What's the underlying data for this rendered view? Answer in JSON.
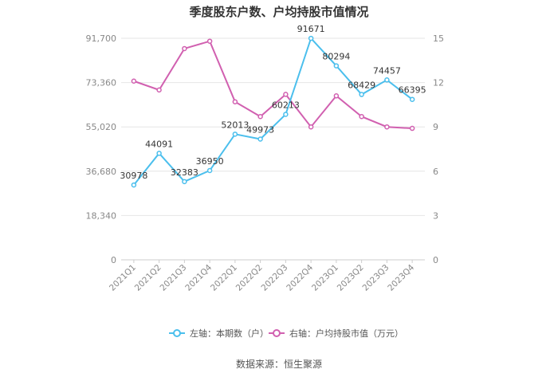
{
  "chart_data": {
    "type": "line",
    "title": "季度股东户数、户均持股市值情况",
    "categories": [
      "2021Q1",
      "2021Q2",
      "2021Q3",
      "2021Q4",
      "2022Q1",
      "2022Q2",
      "2022Q3",
      "2022Q4",
      "2023Q1",
      "2023Q2",
      "2023Q3",
      "2023Q4"
    ],
    "left_axis": {
      "ticks": [
        "0",
        "18,340",
        "36,680",
        "55,020",
        "73,360",
        "91,700"
      ],
      "ylim": [
        0,
        91700
      ]
    },
    "right_axis": {
      "ticks": [
        "0",
        "3",
        "6",
        "9",
        "12",
        "15"
      ],
      "ylim": [
        0,
        15
      ]
    },
    "series": [
      {
        "name": "左轴：本期数（户）",
        "axis": "left",
        "color": "#4bbfed",
        "values": [
          30978,
          44091,
          32383,
          36950,
          52013,
          49973,
          60213,
          91671,
          80294,
          68429,
          74457,
          66395
        ],
        "labels": [
          "30978",
          "44091",
          "32383",
          "36950",
          "52013",
          "49973",
          "60213",
          "91671",
          "80294",
          "68429",
          "74457",
          "66395"
        ]
      },
      {
        "name": "右轴：户均持股市值（万元）",
        "axis": "right",
        "color": "#d160b0",
        "values": [
          12.1,
          11.5,
          14.3,
          14.8,
          10.7,
          9.7,
          11.2,
          9.0,
          11.1,
          9.7,
          9.0,
          8.9
        ]
      }
    ],
    "grid": true,
    "legend_position": "bottom"
  },
  "source": "数据来源：恒生聚源"
}
